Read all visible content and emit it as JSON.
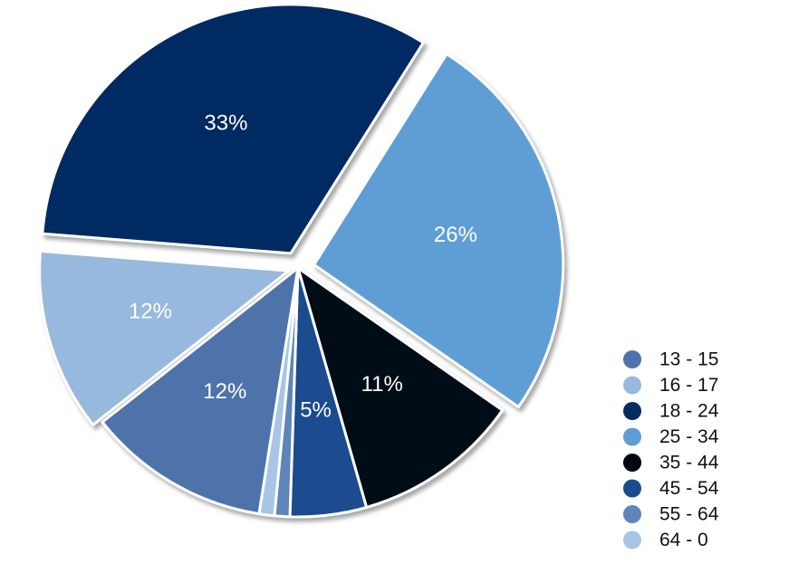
{
  "chart_data": {
    "type": "pie",
    "legend_position": "bottom-right",
    "slices": [
      {
        "label": "13 - 15",
        "value": 12,
        "display": "12%",
        "color": "#4e73aa"
      },
      {
        "label": "16 - 17",
        "value": 12,
        "display": "12%",
        "color": "#97b9dd"
      },
      {
        "label": "18 - 24",
        "value": 33,
        "display": "33%",
        "color": "#062a62"
      },
      {
        "label": "25 - 34",
        "value": 26,
        "display": "26%",
        "color": "#5f9ed5"
      },
      {
        "label": "35 - 44",
        "value": 11,
        "display": "11%",
        "color": "#000713"
      },
      {
        "label": "45 - 54",
        "value": 5,
        "display": "5%",
        "color": "#1a4b8f"
      },
      {
        "label": "55 - 64",
        "value": 1,
        "display": "",
        "color": "#5f84bb"
      },
      {
        "label": "64 - 0",
        "value": 1,
        "display": "",
        "color": "#a8c5e6"
      }
    ]
  }
}
